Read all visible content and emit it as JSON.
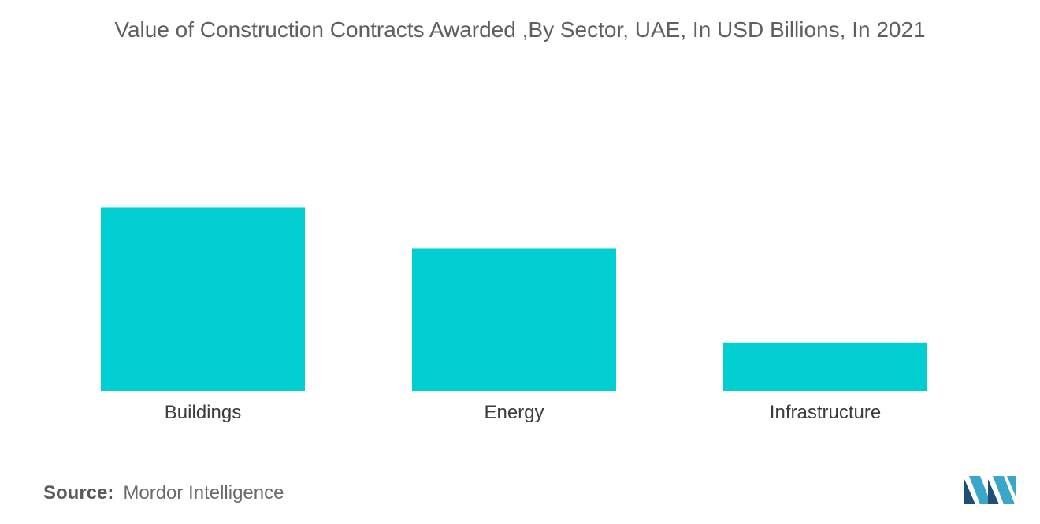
{
  "chart_data": {
    "type": "bar",
    "title": "Value of Construction Contracts Awarded ,By Sector, UAE, In USD Billions, In 2021",
    "categories": [
      "Buildings",
      "Energy",
      "Infrastructure"
    ],
    "values": [
      7.6,
      5.9,
      2.0
    ],
    "ylim": [
      0,
      10
    ],
    "xlabel": "",
    "ylabel": "",
    "grid": false,
    "bar_color": "#00ced1"
  },
  "source": {
    "label": "Source:",
    "text": "Mordor Intelligence"
  },
  "logo": {
    "icon": "mordor-intelligence-logo-icon",
    "colors": [
      "#1f4e79",
      "#3aa6c9"
    ]
  }
}
